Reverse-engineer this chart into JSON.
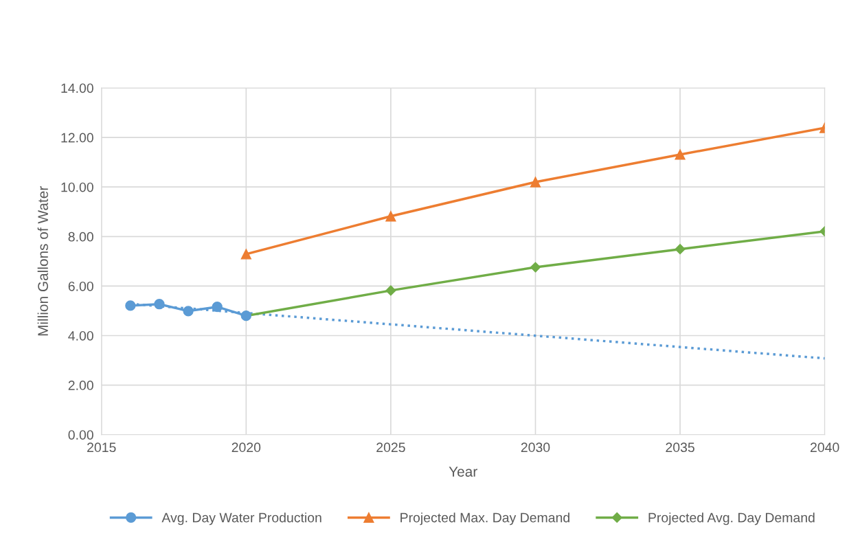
{
  "chart_data": {
    "type": "line",
    "xlabel": "Year",
    "ylabel": "Million Gallons of Water",
    "xlim": [
      2015,
      2040
    ],
    "xticks": [
      2015,
      2020,
      2025,
      2030,
      2035,
      2040
    ],
    "ylim": [
      0,
      14
    ],
    "yticks": [
      {
        "value": 0,
        "label": "0.00"
      },
      {
        "value": 2,
        "label": "2.00"
      },
      {
        "value": 4,
        "label": "4.00"
      },
      {
        "value": 6,
        "label": "6.00"
      },
      {
        "value": 8,
        "label": "8.00"
      },
      {
        "value": 10,
        "label": "10.00"
      },
      {
        "value": 12,
        "label": "12.00"
      },
      {
        "value": 14,
        "label": "14.00"
      }
    ],
    "grid": true,
    "legend": "bottom",
    "series": [
      {
        "name": "Avg. Day Water Production",
        "color": "#5b9bd5",
        "marker": "circle",
        "line_style": "solid",
        "x": [
          2016,
          2017,
          2018,
          2019,
          2020
        ],
        "values": [
          5.21,
          5.27,
          4.99,
          5.16,
          4.8
        ]
      },
      {
        "name": "Projected Max. Day Demand",
        "color": "#ed7d31",
        "marker": "triangle",
        "line_style": "solid",
        "x": [
          2020,
          2025,
          2030,
          2035,
          2040
        ],
        "values": [
          7.29,
          8.82,
          10.2,
          11.31,
          12.39
        ]
      },
      {
        "name": "Projected Avg. Day Demand",
        "color": "#70ad47",
        "marker": "diamond",
        "line_style": "solid",
        "x": [
          2020,
          2025,
          2030,
          2035,
          2040
        ],
        "values": [
          4.8,
          5.82,
          6.76,
          7.49,
          8.21
        ]
      },
      {
        "color": "#5b9bd5",
        "marker": "none",
        "line_style": "dotted",
        "x": [
          2016,
          2040
        ],
        "values": [
          5.28,
          3.08
        ]
      }
    ]
  }
}
